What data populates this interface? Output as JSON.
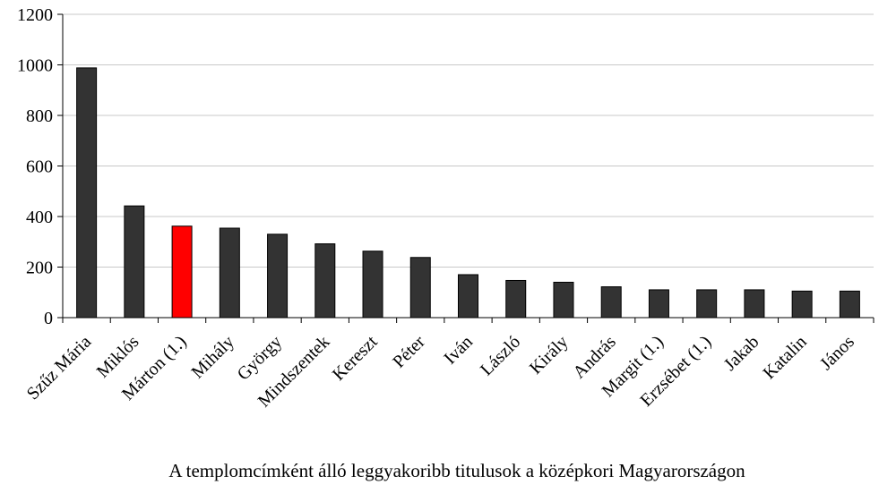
{
  "chart_data": {
    "type": "bar",
    "categories": [
      "Szűz Mária",
      "Miklós",
      "Márton (1.)",
      "Mihály",
      "György",
      "Mindszentek",
      "Kereszt",
      "Péter",
      "Iván",
      "László",
      "Király",
      "András",
      "Margit (1.)",
      "Erzsébet (1.)",
      "Jakab",
      "Katalin",
      "János"
    ],
    "values": [
      988,
      442,
      362,
      354,
      330,
      292,
      263,
      238,
      170,
      147,
      140,
      122,
      110,
      110,
      110,
      105,
      105
    ],
    "bar_color": "#333333",
    "highlight_index": 2,
    "highlight_color": "#ff0000",
    "ylim": [
      0,
      1200
    ],
    "yticks": [
      0,
      200,
      400,
      600,
      800,
      1000,
      1200
    ],
    "grid": true,
    "caption": "A templomcímként álló leggyakoribb titulusok a középkori Magyarországon"
  }
}
